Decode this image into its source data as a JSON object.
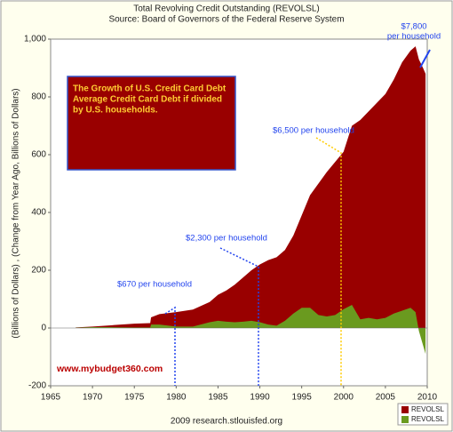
{
  "chart_data": {
    "type": "area",
    "title": "Total Revolving Credit Outstanding (REVOLSL)",
    "subtitle": "Source: Board of Governors of the Federal Reserve System",
    "y_label": "(Billions of Dollars) , (Change from Year Ago, Billions of Dollars)",
    "credit": "2009 research.stlouisfed.org",
    "x": [
      1968,
      1970,
      1972,
      1975,
      1976.9,
      1977,
      1978,
      1980,
      1982,
      1984,
      1985,
      1986,
      1987,
      1988,
      1989,
      1990,
      1991,
      1992,
      1993,
      1994,
      1995,
      1996,
      1997,
      1998,
      1999,
      2000,
      2001,
      2002,
      2003,
      2004,
      2005,
      2006,
      2007,
      2008,
      2008.6,
      2009,
      2009.5,
      2009.8
    ],
    "series": [
      {
        "name": "REVOLSL",
        "color": "#990000",
        "values": [
          2,
          5,
          9,
          15,
          17,
          37,
          48,
          55,
          64,
          90,
          115,
          130,
          150,
          175,
          200,
          220,
          235,
          245,
          270,
          320,
          390,
          460,
          500,
          540,
          575,
          610,
          700,
          720,
          750,
          780,
          810,
          860,
          920,
          960,
          975,
          930,
          900,
          880
        ]
      },
      {
        "name": "REVOLSL",
        "color": "#6a9a1f",
        "values": [
          1,
          3,
          3,
          2,
          2,
          12,
          12,
          5,
          5,
          20,
          25,
          22,
          20,
          22,
          25,
          20,
          12,
          8,
          25,
          50,
          70,
          70,
          45,
          40,
          45,
          65,
          80,
          30,
          35,
          30,
          35,
          50,
          60,
          70,
          55,
          -10,
          -60,
          -90
        ]
      }
    ],
    "xlim": [
      1965,
      2010
    ],
    "xticks": [
      1965,
      1970,
      1975,
      1980,
      1985,
      1990,
      1995,
      2000,
      2005,
      2010
    ],
    "ylim": [
      -200,
      1000
    ],
    "yticks": [
      -200,
      0,
      200,
      {
        "value": 400,
        "label": "400"
      },
      600,
      800,
      {
        "value": 1000,
        "label": "1,000"
      }
    ],
    "annotations": {
      "box": [
        "The Growth of U.S. Credit Card Debt",
        "Average Credit Card Debt if divided",
        "by U.S. households."
      ],
      "a670": "$670 per household",
      "a2300": "$2,300 per household",
      "a6500": "$6,500 per household",
      "a7800": [
        "$7,800",
        "per household"
      ],
      "site": "www.mybudget360.com"
    }
  }
}
